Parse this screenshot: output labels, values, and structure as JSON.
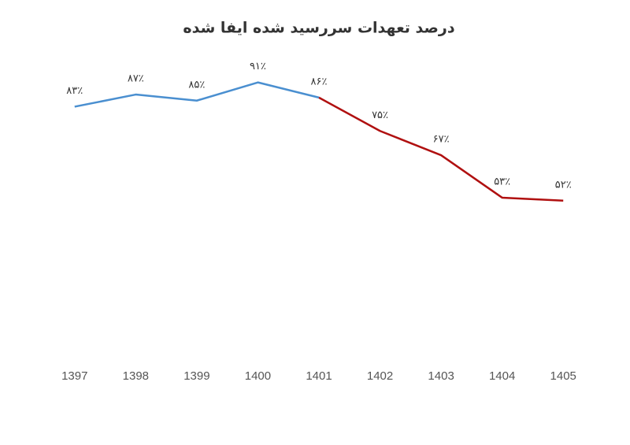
{
  "chart_data": {
    "type": "line",
    "title": "درصد تعهدات سررسید شده ایفا شده",
    "categories": [
      "1397",
      "1398",
      "1399",
      "1400",
      "1401",
      "1402",
      "1403",
      "1404",
      "1405"
    ],
    "ylim": [
      0,
      100
    ],
    "series": [
      {
        "color": "#4a8fd0",
        "values": [
          83,
          87,
          85,
          91,
          86,
          null,
          null,
          null,
          null
        ],
        "value_labels": [
          "۸۳٪",
          "۸۷٪",
          "۸۵٪",
          "۹۱٪",
          "۸۶٪",
          null,
          null,
          null,
          null
        ]
      },
      {
        "color": "#b01010",
        "values": [
          null,
          null,
          null,
          null,
          86,
          75,
          67,
          53,
          52
        ],
        "value_labels": [
          null,
          null,
          null,
          null,
          null,
          "۷۵٪",
          "۶۷٪",
          "۵۳٪",
          "۵۲٪"
        ]
      }
    ]
  }
}
